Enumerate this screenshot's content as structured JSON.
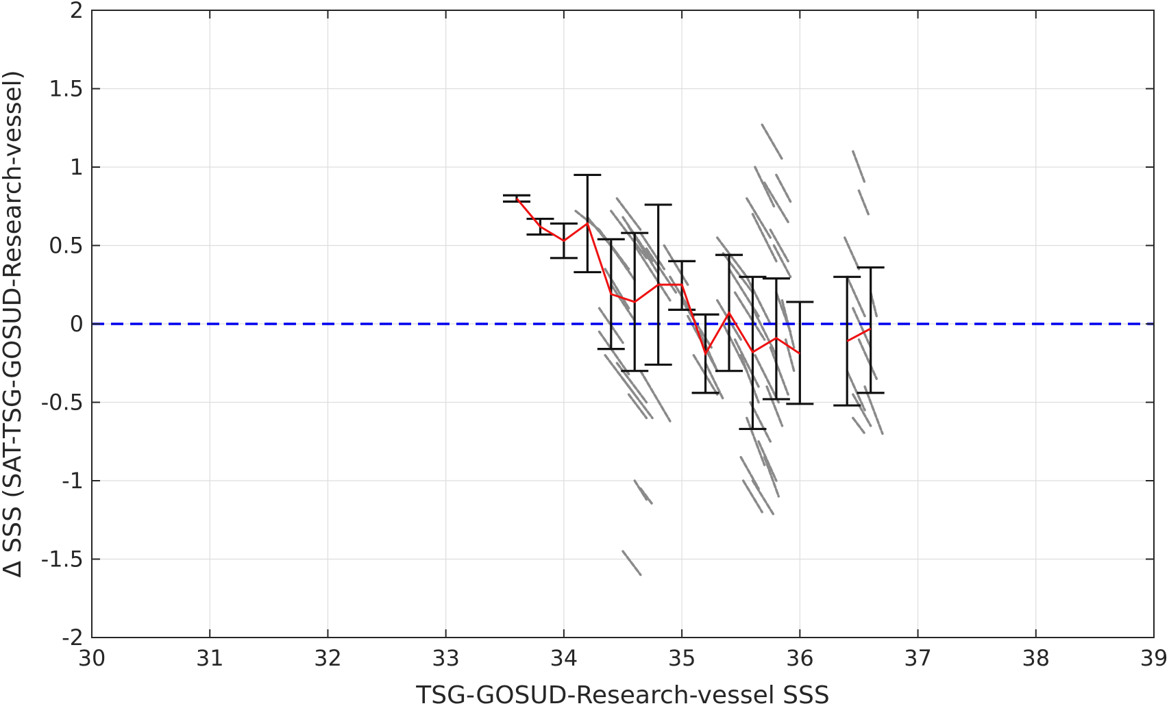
{
  "chart_data": {
    "type": "scatter",
    "title": "",
    "xlabel": "TSG-GOSUD-Research-vessel SSS",
    "ylabel": "Δ SSS (SAT-TSG-GOSUD-Research-vessel)",
    "xlim": [
      30,
      39
    ],
    "ylim": [
      -2,
      2
    ],
    "xticks": [
      "30",
      "31",
      "32",
      "33",
      "34",
      "35",
      "36",
      "37",
      "38",
      "39"
    ],
    "yticks": [
      "2",
      "1.5",
      "1",
      "0.5",
      "0",
      "-0.5",
      "-1",
      "-1.5",
      "-2"
    ],
    "grid": true,
    "reference_line": {
      "y": 0,
      "style": "dashed",
      "color": "#0000ee"
    },
    "scatter_segments": [
      [
        34.1,
        0.72,
        34.3,
        0.6
      ],
      [
        34.2,
        0.68,
        34.45,
        0.45
      ],
      [
        34.3,
        0.6,
        34.55,
        0.35
      ],
      [
        34.35,
        0.55,
        34.6,
        0.28
      ],
      [
        34.4,
        0.72,
        34.7,
        0.42
      ],
      [
        34.45,
        0.8,
        34.65,
        0.6
      ],
      [
        34.5,
        0.68,
        34.75,
        0.4
      ],
      [
        34.55,
        0.62,
        34.8,
        0.32
      ],
      [
        34.6,
        0.5,
        34.9,
        0.15
      ],
      [
        34.65,
        0.58,
        34.85,
        0.35
      ],
      [
        34.7,
        0.48,
        34.95,
        0.2
      ],
      [
        34.35,
        0.35,
        34.55,
        0.1
      ],
      [
        34.4,
        0.25,
        34.6,
        0.02
      ],
      [
        34.3,
        0.1,
        34.5,
        -0.12
      ],
      [
        34.3,
        -0.05,
        34.55,
        -0.32
      ],
      [
        34.35,
        -0.2,
        34.6,
        -0.45
      ],
      [
        34.45,
        -0.25,
        34.7,
        -0.5
      ],
      [
        34.5,
        -0.35,
        34.75,
        -0.6
      ],
      [
        34.55,
        -0.45,
        34.7,
        -0.6
      ],
      [
        34.65,
        -0.3,
        34.9,
        -0.62
      ],
      [
        34.6,
        -1.0,
        34.7,
        -1.12
      ],
      [
        34.65,
        -1.05,
        34.75,
        -1.15
      ],
      [
        34.5,
        -1.45,
        34.65,
        -1.6
      ],
      [
        34.85,
        0.5,
        35.05,
        0.25
      ],
      [
        34.9,
        0.3,
        35.1,
        0.05
      ],
      [
        35.0,
        0.15,
        35.25,
        -0.15
      ],
      [
        35.05,
        0.05,
        35.3,
        -0.3
      ],
      [
        35.15,
        -0.05,
        35.3,
        -0.3
      ],
      [
        35.2,
        -0.25,
        35.35,
        -0.48
      ],
      [
        35.1,
        -0.2,
        35.3,
        -0.45
      ],
      [
        35.3,
        0.55,
        35.55,
        0.3
      ],
      [
        35.35,
        0.45,
        35.6,
        0.2
      ],
      [
        35.4,
        0.35,
        35.65,
        0.05
      ],
      [
        35.45,
        0.2,
        35.7,
        -0.1
      ],
      [
        35.3,
        0.15,
        35.5,
        -0.1
      ],
      [
        35.35,
        0.0,
        35.55,
        -0.3
      ],
      [
        35.45,
        -0.1,
        35.65,
        -0.4
      ],
      [
        35.5,
        -0.2,
        35.65,
        -0.5
      ],
      [
        35.55,
        0.8,
        35.75,
        0.55
      ],
      [
        35.6,
        0.7,
        35.8,
        0.4
      ],
      [
        35.62,
        1.0,
        35.78,
        0.75
      ],
      [
        35.68,
        1.27,
        35.85,
        1.05
      ],
      [
        35.7,
        0.9,
        35.9,
        0.65
      ],
      [
        35.75,
        0.6,
        35.9,
        0.4
      ],
      [
        35.8,
        0.95,
        35.92,
        0.78
      ],
      [
        35.78,
        0.5,
        35.92,
        0.3
      ],
      [
        35.55,
        0.3,
        35.75,
        0.0
      ],
      [
        35.6,
        0.1,
        35.8,
        -0.2
      ],
      [
        35.62,
        -0.2,
        35.82,
        -0.5
      ],
      [
        35.58,
        -0.5,
        35.75,
        -0.75
      ],
      [
        35.55,
        -0.6,
        35.7,
        -0.9
      ],
      [
        35.5,
        -0.85,
        35.65,
        -1.05
      ],
      [
        35.52,
        -1.0,
        35.68,
        -1.2
      ],
      [
        35.6,
        -1.0,
        35.78,
        -1.22
      ],
      [
        35.65,
        -0.75,
        35.8,
        -1.0
      ],
      [
        35.7,
        -0.85,
        35.82,
        -1.1
      ],
      [
        35.72,
        -0.4,
        35.85,
        -0.65
      ],
      [
        35.75,
        -0.15,
        35.9,
        -0.45
      ],
      [
        35.8,
        0.2,
        35.92,
        -0.05
      ],
      [
        35.85,
        0.15,
        35.95,
        -0.15
      ],
      [
        35.88,
        -0.1,
        35.95,
        -0.3
      ],
      [
        36.45,
        1.1,
        36.55,
        0.9
      ],
      [
        36.5,
        0.85,
        36.58,
        0.7
      ],
      [
        36.38,
        0.55,
        36.5,
        0.35
      ],
      [
        36.4,
        0.3,
        36.55,
        0.05
      ],
      [
        36.45,
        0.1,
        36.6,
        -0.15
      ],
      [
        36.5,
        -0.1,
        36.65,
        -0.35
      ],
      [
        36.4,
        -0.3,
        36.55,
        -0.55
      ],
      [
        36.45,
        -0.45,
        36.6,
        -0.65
      ],
      [
        36.55,
        -0.4,
        36.7,
        -0.7
      ],
      [
        36.6,
        0.2,
        36.65,
        0.05
      ],
      [
        36.45,
        -0.6,
        36.55,
        -0.7
      ]
    ],
    "series": [
      {
        "name": "",
        "color": "#ee1111",
        "x": [
          33.6,
          33.8,
          34.0,
          34.2,
          34.4,
          34.6,
          34.8,
          35.0,
          35.2,
          35.4,
          35.6,
          35.8,
          36.0,
          36.4,
          36.6
        ],
        "y": [
          0.8,
          0.62,
          0.53,
          0.64,
          0.19,
          0.14,
          0.25,
          0.25,
          -0.19,
          0.07,
          -0.18,
          -0.09,
          -0.19,
          -0.11,
          -0.03
        ],
        "err_low": [
          0.78,
          0.57,
          0.42,
          0.33,
          -0.16,
          -0.3,
          -0.26,
          0.09,
          -0.44,
          -0.3,
          -0.67,
          -0.48,
          -0.51,
          -0.52,
          -0.44
        ],
        "err_high": [
          0.82,
          0.67,
          0.64,
          0.95,
          0.54,
          0.58,
          0.76,
          0.4,
          0.06,
          0.44,
          0.3,
          0.29,
          0.14,
          0.3,
          0.36
        ]
      }
    ]
  }
}
